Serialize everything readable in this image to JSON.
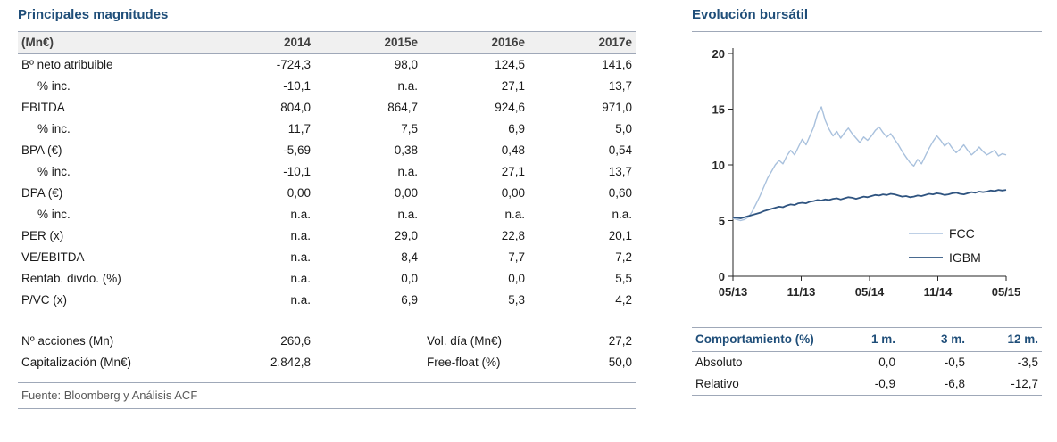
{
  "left": {
    "title": "Principales magnitudes",
    "table": {
      "header": [
        "(Mn€)",
        "2014",
        "2015e",
        "2016e",
        "2017e"
      ],
      "rows": [
        {
          "label": "Bº neto atribuible",
          "indent": false,
          "values": [
            "-724,3",
            "98,0",
            "124,5",
            "141,6"
          ]
        },
        {
          "label": "% inc.",
          "indent": true,
          "values": [
            "-10,1",
            "n.a.",
            "27,1",
            "13,7"
          ]
        },
        {
          "label": "EBITDA",
          "indent": false,
          "values": [
            "804,0",
            "864,7",
            "924,6",
            "971,0"
          ]
        },
        {
          "label": "% inc.",
          "indent": true,
          "values": [
            "11,7",
            "7,5",
            "6,9",
            "5,0"
          ]
        },
        {
          "label": "BPA (€)",
          "indent": false,
          "values": [
            "-5,69",
            "0,38",
            "0,48",
            "0,54"
          ]
        },
        {
          "label": "% inc.",
          "indent": true,
          "values": [
            "-10,1",
            "n.a.",
            "27,1",
            "13,7"
          ]
        },
        {
          "label": "DPA (€)",
          "indent": false,
          "values": [
            "0,00",
            "0,00",
            "0,00",
            "0,60"
          ]
        },
        {
          "label": "% inc.",
          "indent": true,
          "values": [
            "n.a.",
            "n.a.",
            "n.a.",
            "n.a."
          ]
        },
        {
          "label": "PER (x)",
          "indent": false,
          "values": [
            "n.a.",
            "29,0",
            "22,8",
            "20,1"
          ]
        },
        {
          "label": "VE/EBITDA",
          "indent": false,
          "values": [
            "n.a.",
            "8,4",
            "7,7",
            "7,2"
          ]
        },
        {
          "label": "Rentab. divdo. (%)",
          "indent": false,
          "values": [
            "n.a.",
            "0,0",
            "0,0",
            "5,5"
          ]
        },
        {
          "label": "P/VC (x)",
          "indent": false,
          "values": [
            "n.a.",
            "6,9",
            "5,3",
            "4,2"
          ]
        }
      ],
      "footer_rows": [
        {
          "label": "Nº acciones (Mn)",
          "value1": "260,6",
          "label2": "Vol. día (Mn€)",
          "value2": "27,2"
        },
        {
          "label": "Capitalización (Mn€)",
          "value1": "2.842,8",
          "label2": "Free-float (%)",
          "value2": "50,0"
        }
      ],
      "source": "Fuente: Bloomberg y Análisis ACF"
    }
  },
  "right": {
    "title": "Evolución bursátil",
    "performance": {
      "header": [
        "Comportamiento (%)",
        "1 m.",
        "3 m.",
        "12 m."
      ],
      "rows": [
        {
          "label": "Absoluto",
          "values": [
            "0,0",
            "-0,5",
            "-3,5"
          ]
        },
        {
          "label": "Relativo",
          "values": [
            "-0,9",
            "-6,8",
            "-12,7"
          ]
        }
      ]
    }
  },
  "chart_data": {
    "type": "line",
    "title": "Evolución bursátil",
    "x_tick_labels": [
      "05/13",
      "11/13",
      "05/14",
      "11/14",
      "05/15"
    ],
    "ylim": [
      0,
      20
    ],
    "yticks": [
      0,
      5,
      10,
      15,
      20
    ],
    "grid": false,
    "legend_position": "right-center",
    "series": [
      {
        "name": "FCC",
        "color": "#A9C1DD",
        "values": [
          5.2,
          5.1,
          5.0,
          5.1,
          5.3,
          5.8,
          6.5,
          7.2,
          8.0,
          8.8,
          9.4,
          10.0,
          10.4,
          10.1,
          10.8,
          11.3,
          10.9,
          11.6,
          12.3,
          11.8,
          12.6,
          13.4,
          14.6,
          15.2,
          14.0,
          13.2,
          12.6,
          13.0,
          12.4,
          12.9,
          13.3,
          12.8,
          12.4,
          12.0,
          12.5,
          12.2,
          12.6,
          13.1,
          13.4,
          12.9,
          12.5,
          12.8,
          12.3,
          11.8,
          11.2,
          10.7,
          10.2,
          9.9,
          10.5,
          10.1,
          10.8,
          11.5,
          12.1,
          12.6,
          12.2,
          11.7,
          12.0,
          11.5,
          11.1,
          11.4,
          11.8,
          11.3,
          10.9,
          11.2,
          11.6,
          11.2,
          10.9,
          11.1,
          11.3,
          10.8,
          11.0,
          10.9
        ]
      },
      {
        "name": "IGBM",
        "color": "#2F5480",
        "values": [
          5.3,
          5.25,
          5.2,
          5.3,
          5.4,
          5.5,
          5.6,
          5.7,
          5.85,
          5.95,
          6.05,
          6.15,
          6.25,
          6.2,
          6.35,
          6.45,
          6.4,
          6.55,
          6.6,
          6.55,
          6.7,
          6.75,
          6.85,
          6.8,
          6.9,
          6.85,
          6.95,
          7.0,
          6.9,
          7.0,
          7.1,
          7.05,
          6.95,
          7.05,
          7.15,
          7.1,
          7.2,
          7.3,
          7.25,
          7.35,
          7.3,
          7.4,
          7.35,
          7.25,
          7.15,
          7.2,
          7.1,
          7.15,
          7.25,
          7.2,
          7.3,
          7.4,
          7.35,
          7.45,
          7.4,
          7.3,
          7.35,
          7.45,
          7.5,
          7.4,
          7.35,
          7.45,
          7.55,
          7.5,
          7.6,
          7.55,
          7.6,
          7.7,
          7.65,
          7.75,
          7.7,
          7.75
        ]
      }
    ]
  },
  "colors": {
    "title_navy": "#1F4E79",
    "rule_gray": "#9FA8B8",
    "header_bg": "#F0F0F0",
    "text_dark": "#1a1a1a",
    "source_gray": "#595959",
    "fcc_line": "#A9C1DD",
    "igbm_line": "#2F5480"
  }
}
